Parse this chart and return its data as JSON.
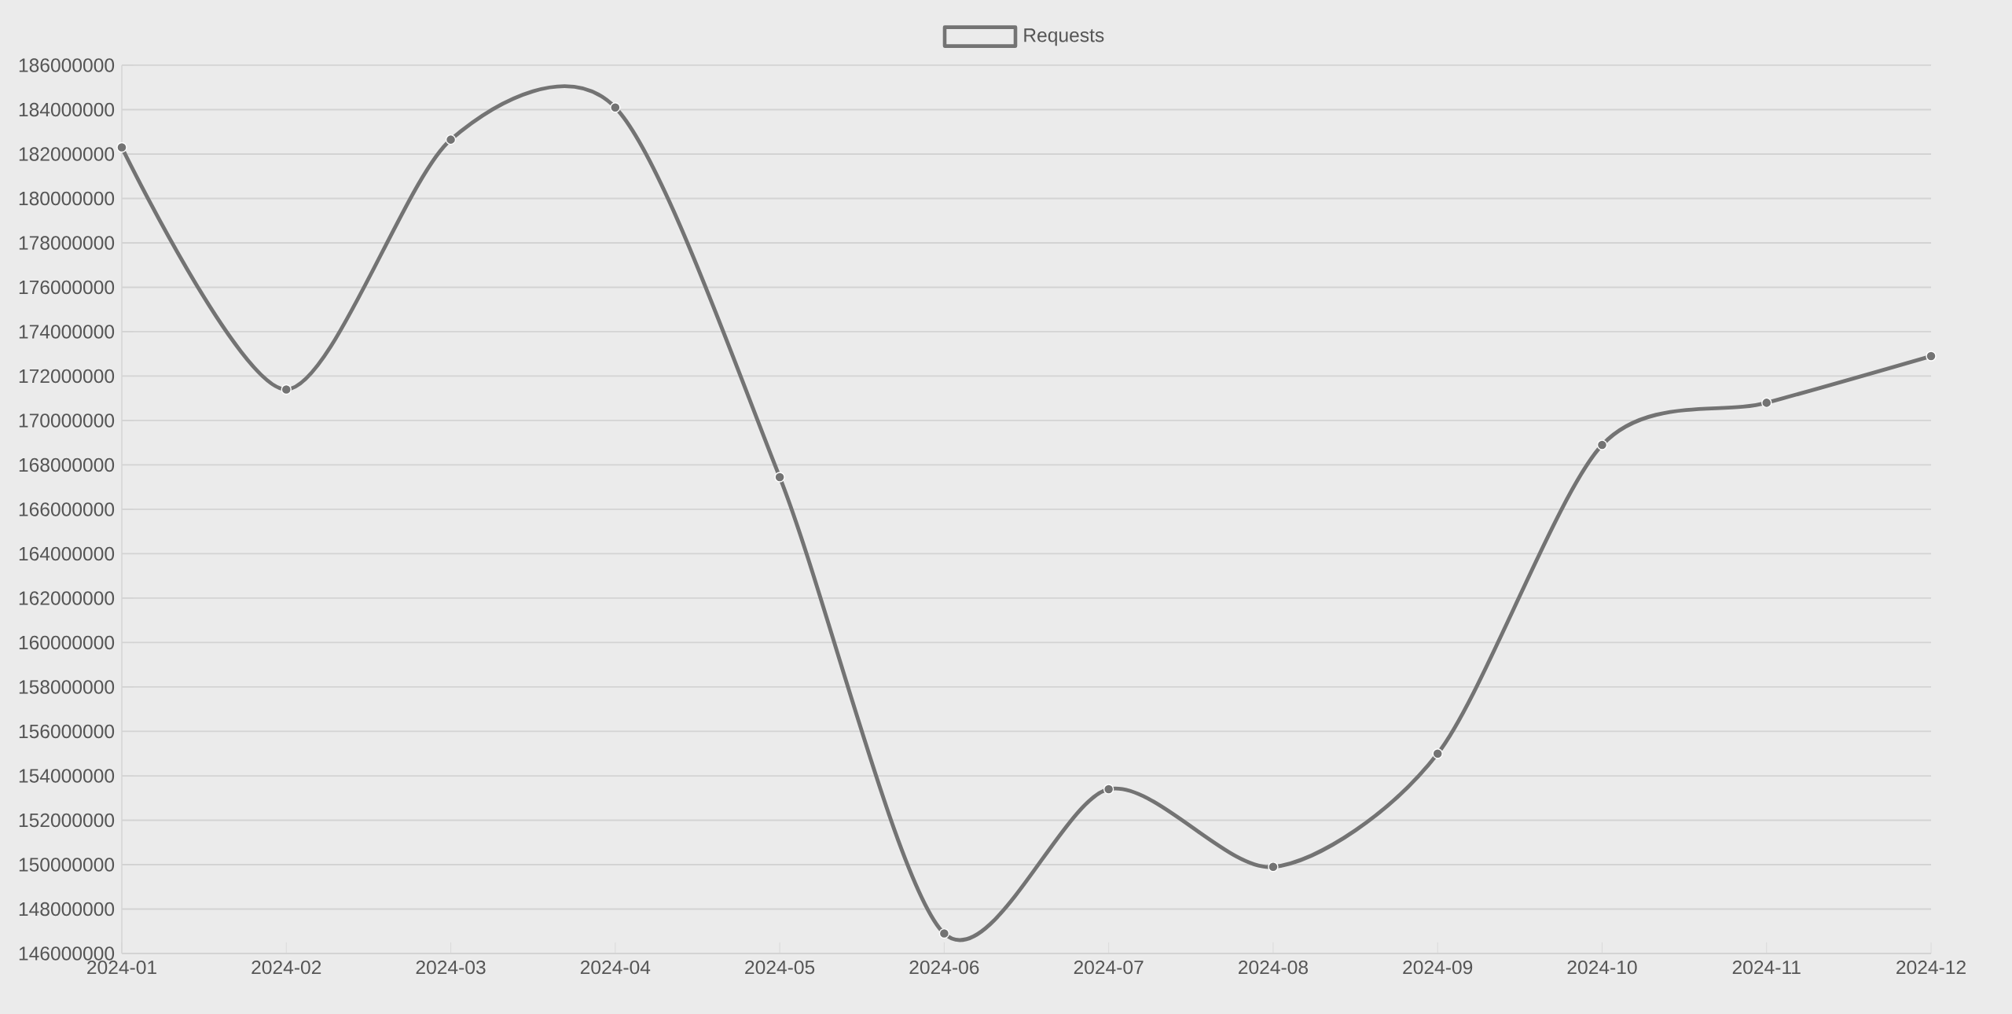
{
  "chart_data": {
    "type": "line",
    "categories": [
      "2024-01",
      "2024-02",
      "2024-03",
      "2024-04",
      "2024-05",
      "2024-06",
      "2024-07",
      "2024-08",
      "2024-09",
      "2024-10",
      "2024-11",
      "2024-12"
    ],
    "series": [
      {
        "name": "Requests",
        "color": "#737373",
        "values": [
          182300000,
          171400000,
          182650000,
          184100000,
          167450000,
          146900000,
          153400000,
          149900000,
          155000000,
          168900000,
          170800000,
          172900000
        ]
      }
    ],
    "ylim": [
      146000000,
      186000000
    ],
    "yticks": [
      146000000,
      148000000,
      150000000,
      152000000,
      154000000,
      156000000,
      158000000,
      160000000,
      162000000,
      164000000,
      166000000,
      168000000,
      170000000,
      172000000,
      174000000,
      176000000,
      178000000,
      180000000,
      182000000,
      184000000,
      186000000
    ],
    "grid": "y",
    "legend": "top",
    "marker": "circle"
  }
}
